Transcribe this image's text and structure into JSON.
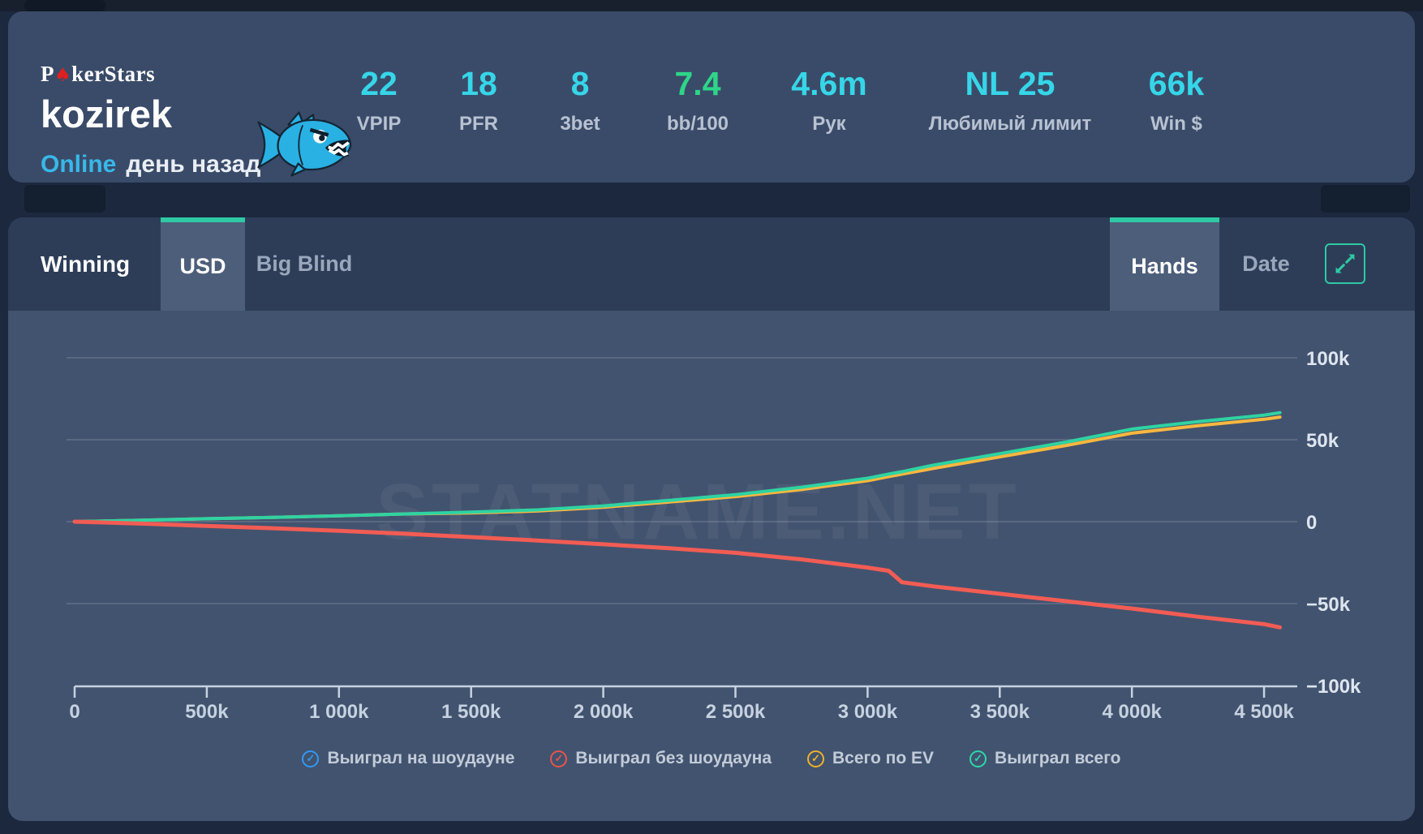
{
  "header": {
    "logo": {
      "prefix": "P",
      "spade": "♠",
      "suffix": "kerStars",
      "spade_color": "#e02020"
    },
    "player_name": "kozirek",
    "status": {
      "online": "Online",
      "ago": "день назад",
      "online_color": "#38b8e8"
    },
    "avatar_icon": "piranha-fish",
    "stats": [
      {
        "value": "22",
        "label": "VPIP",
        "color": "#36d6e8"
      },
      {
        "value": "18",
        "label": "PFR",
        "color": "#36d6e8"
      },
      {
        "value": "8",
        "label": "3bet",
        "color": "#36d6e8"
      },
      {
        "value": "7.4",
        "label": "bb/100",
        "color": "#2ed589"
      },
      {
        "value": "4.6m",
        "label": "Рук",
        "color": "#36d6e8"
      },
      {
        "value": "NL 25",
        "label": "Любимый лимит",
        "color": "#36d6e8"
      },
      {
        "value": "66k",
        "label": "Win $",
        "color": "#36d6e8"
      }
    ]
  },
  "toolbar": {
    "left_label": "Winning",
    "currency_tabs": [
      {
        "label": "USD",
        "active": true
      },
      {
        "label": "Big Blind",
        "active": false
      }
    ],
    "axis_tabs": [
      {
        "label": "Hands",
        "active": true
      },
      {
        "label": "Date",
        "active": false
      }
    ],
    "accent_color": "#2fc9a4"
  },
  "chart_data": {
    "type": "line",
    "title": "",
    "xlabel": "hands",
    "ylabel": "USD",
    "xlim": [
      0,
      4560
    ],
    "ylim": [
      -100,
      100
    ],
    "grid": true,
    "legend_position": "bottom",
    "watermark": "STATNAME.NET",
    "x_ticks": [
      "0",
      "500k",
      "1 000k",
      "1 500k",
      "2 000k",
      "2 500k",
      "3 000k",
      "3 500k",
      "4 000k",
      "4 500k"
    ],
    "x_tick_values": [
      0,
      500,
      1000,
      1500,
      2000,
      2500,
      3000,
      3500,
      4000,
      4500
    ],
    "y_ticks": [
      "100k",
      "50k",
      "0",
      "−50k",
      "−100k"
    ],
    "y_tick_values": [
      100,
      50,
      0,
      -50,
      -100
    ],
    "x": [
      0,
      250,
      500,
      750,
      1000,
      1250,
      1500,
      1750,
      2000,
      2250,
      2500,
      2750,
      3000,
      3080,
      3130,
      3250,
      3500,
      3750,
      4000,
      4250,
      4500,
      4560
    ],
    "series": [
      {
        "key": "total-ev",
        "name": "Всего по EV",
        "color": "#f9b73f",
        "width": 4,
        "values": [
          0,
          0.9,
          1.8,
          2.6,
          3.6,
          4.7,
          5.3,
          6.5,
          8.8,
          12,
          15.3,
          19.6,
          25,
          27.5,
          29,
          32.5,
          39.5,
          46.5,
          54,
          58.5,
          62.5,
          63.8
        ]
      },
      {
        "key": "total-won",
        "name": "Выиграл всего",
        "color": "#2fd3a2",
        "width": 4,
        "values": [
          0,
          0.9,
          1.8,
          2.6,
          3.6,
          4.7,
          5.8,
          7.2,
          9.6,
          13,
          16.5,
          21,
          26.5,
          29,
          30.5,
          34.5,
          41.5,
          48.5,
          56.5,
          61,
          65,
          66.5
        ]
      },
      {
        "key": "won-without-showdown",
        "name": "Выиграл без шоудауна",
        "color": "#f25c54",
        "width": 5,
        "values": [
          0,
          -1.2,
          -2.6,
          -4,
          -5.6,
          -7.4,
          -9.4,
          -11.5,
          -13.8,
          -16.2,
          -19,
          -23,
          -28,
          -30,
          -37,
          -39.5,
          -44,
          -48.5,
          -53,
          -58,
          -62.5,
          -64.5
        ]
      }
    ]
  },
  "legend": [
    {
      "label": "Выиграл на шоудауне",
      "color": "#3399f3"
    },
    {
      "label": "Выиграл без шоудауна",
      "color": "#e8554d"
    },
    {
      "label": "Всего по EV",
      "color": "#eeb22c"
    },
    {
      "label": "Выиграл всего",
      "color": "#2bd9a8"
    }
  ]
}
